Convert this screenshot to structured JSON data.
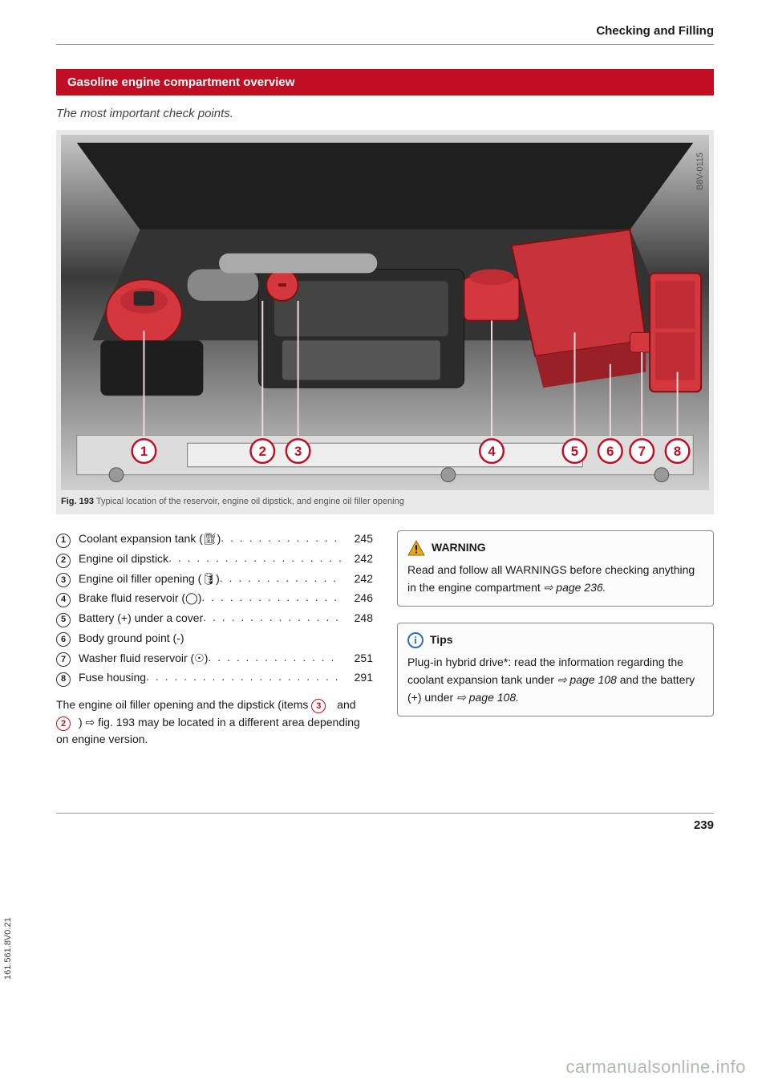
{
  "header": {
    "section_title": "Checking and Filling"
  },
  "banner": {
    "title": "Gasoline engine compartment overview"
  },
  "subtitle": "The most important check points.",
  "figure": {
    "image_code": "B8V-0115",
    "caption_label": "Fig. 193",
    "caption_text": "Typical location of the reservoir, engine oil dipstick, and engine oil filler opening",
    "markers": [
      "1",
      "2",
      "3",
      "4",
      "5",
      "6",
      "7",
      "8"
    ],
    "colors": {
      "highlight": "#d4373e",
      "engine_dark": "#2a2a2a",
      "engine_mid": "#6a6a6a",
      "engine_light": "#b8b8b8",
      "marker_border": "#c10e22",
      "marker_fill": "#ffffff",
      "leader": "#f2d9db"
    }
  },
  "items": [
    {
      "num": "1",
      "label": "Coolant expansion tank (⛽︎)",
      "page": "245"
    },
    {
      "num": "2",
      "label": "Engine oil dipstick",
      "page": "242"
    },
    {
      "num": "3",
      "label": "Engine oil filler opening (🛢)",
      "page": "242"
    },
    {
      "num": "4",
      "label": "Brake fluid reservoir (◯)",
      "page": "246"
    },
    {
      "num": "5",
      "label": "Battery (+) under a cover",
      "page": "248"
    },
    {
      "num": "6",
      "label": "Body ground point (-)",
      "page": ""
    },
    {
      "num": "7",
      "label": "Washer fluid reservoir (☉)",
      "page": "251"
    },
    {
      "num": "8",
      "label": "Fuse housing",
      "page": "291"
    }
  ],
  "note_para": {
    "text_a": "The engine oil filler opening and the dipstick (items ",
    "ref1": "3",
    "mid": " and ",
    "ref2": "2",
    "text_b": ") ⇨ fig. 193 may be located in a different area depending on engine version."
  },
  "warning_box": {
    "title": "WARNING",
    "body_a": "Read and follow all WARNINGS before checking anything in the engine compartment ",
    "body_b": "⇨ page 236.",
    "icon_color": "#e6a815"
  },
  "tips_box": {
    "title": "Tips",
    "body_a": "Plug-in hybrid drive*: read the information regarding the coolant expansion tank under ",
    "body_b": "⇨ page 108",
    "body_c": " and the battery (+) under ",
    "body_d": "⇨ page 108."
  },
  "footer": {
    "page_number": "239"
  },
  "side_code": "161.561.8V0.21",
  "watermark": "carmanualsonline.info"
}
